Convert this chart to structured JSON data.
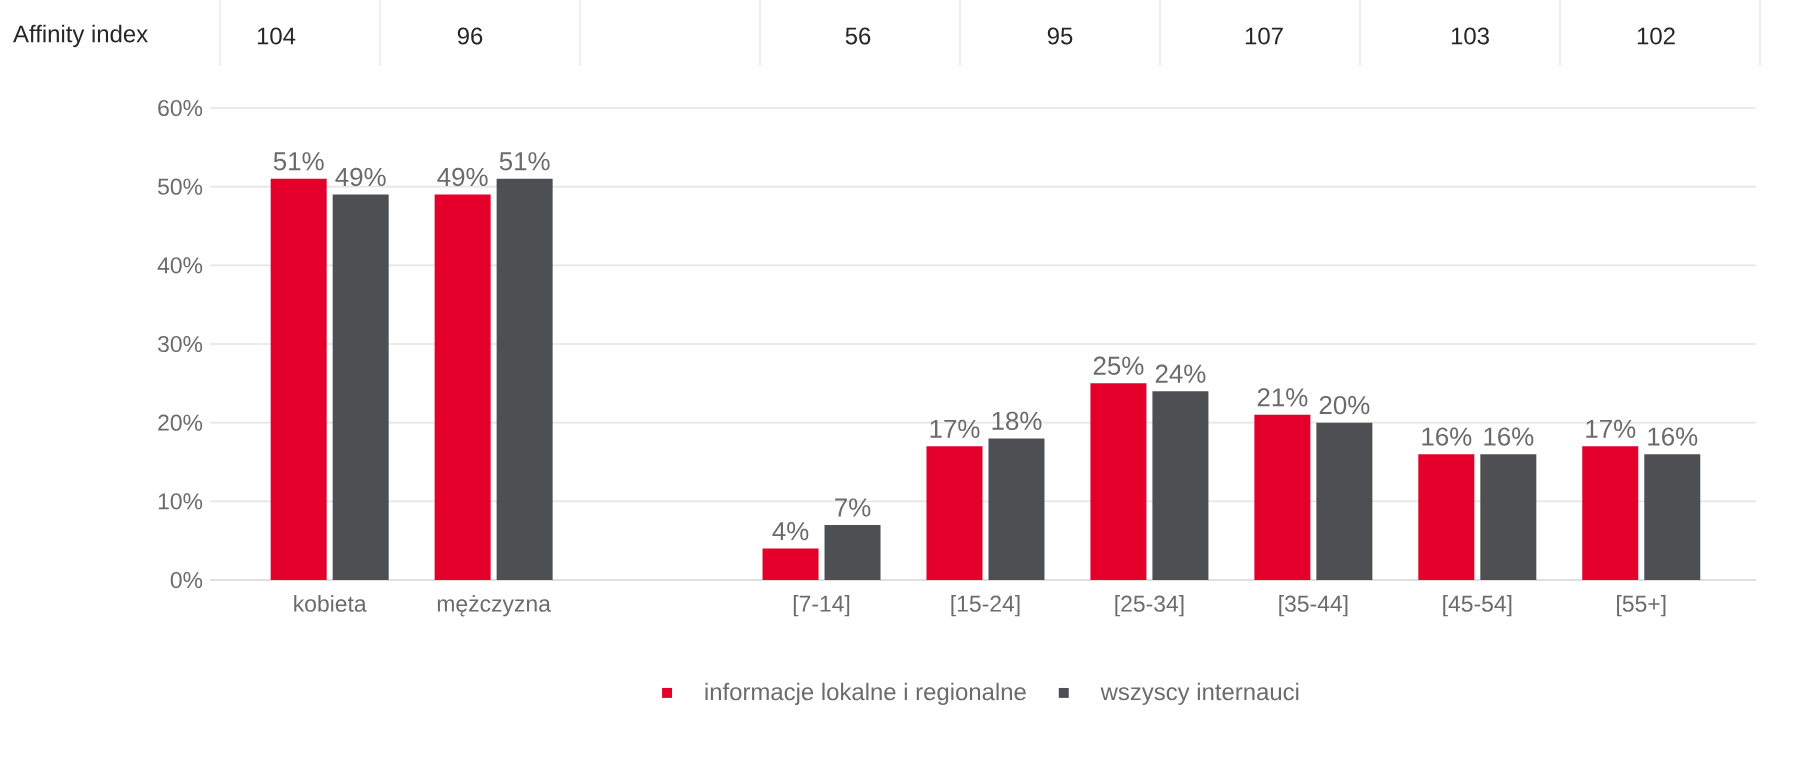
{
  "chart_data": {
    "type": "bar",
    "categories": [
      "kobieta",
      "mężczyzna",
      null,
      "[7-14]",
      "[15-24]",
      "[25-34]",
      "[35-44]",
      "[45-54]",
      "[55+]"
    ],
    "series": [
      {
        "name": "informacje lokalne i regionalne",
        "color": "#e4002b",
        "values": [
          51,
          49,
          null,
          4,
          17,
          25,
          21,
          16,
          17
        ],
        "value_labels": [
          "51%",
          "49%",
          null,
          "4%",
          "17%",
          "25%",
          "21%",
          "16%",
          "17%"
        ]
      },
      {
        "name": "wszyscy internauci",
        "color": "#4d4f53",
        "values": [
          49,
          51,
          null,
          7,
          18,
          24,
          20,
          16,
          16
        ],
        "value_labels": [
          "49%",
          "51%",
          null,
          "7%",
          "18%",
          "24%",
          "20%",
          "16%",
          "16%"
        ]
      }
    ],
    "ylim": [
      0,
      60
    ],
    "yticks": [
      {
        "value": 0,
        "label": "0%"
      },
      {
        "value": 10,
        "label": "10%"
      },
      {
        "value": 20,
        "label": "20%"
      },
      {
        "value": 30,
        "label": "30%"
      },
      {
        "value": 40,
        "label": "40%"
      },
      {
        "value": 50,
        "label": "50%"
      },
      {
        "value": 60,
        "label": "60%"
      }
    ],
    "grid": "y",
    "legend": "bottom",
    "annotations": [
      "Affinity index",
      "104",
      "96",
      "56",
      "95",
      "107",
      "103",
      "102"
    ]
  }
}
